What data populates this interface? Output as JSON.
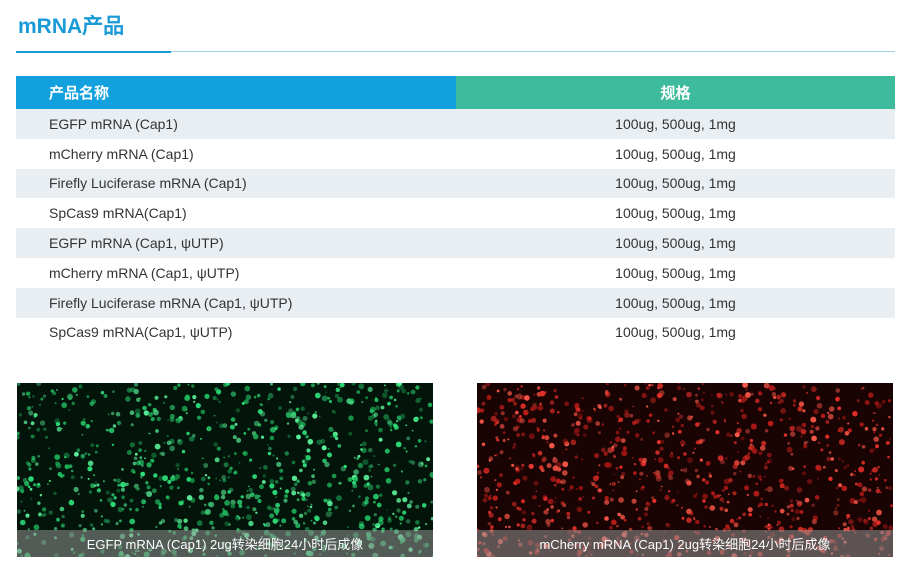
{
  "header": {
    "title": "mRNA产品"
  },
  "table": {
    "columns": [
      "产品名称",
      "规格"
    ],
    "rows": [
      [
        "EGFP mRNA (Cap1)",
        "100ug, 500ug, 1mg"
      ],
      [
        "mCherry mRNA (Cap1)",
        "100ug, 500ug, 1mg"
      ],
      [
        "Firefly Luciferase mRNA (Cap1)",
        "100ug, 500ug, 1mg"
      ],
      [
        "SpCas9 mRNA(Cap1)",
        "100ug, 500ug, 1mg"
      ],
      [
        "EGFP mRNA (Cap1, ψUTP)",
        "100ug, 500ug, 1mg"
      ],
      [
        "mCherry mRNA (Cap1, ψUTP)",
        "100ug, 500ug, 1mg"
      ],
      [
        "Firefly Luciferase mRNA (Cap1, ψUTP)",
        "100ug, 500ug, 1mg"
      ],
      [
        "SpCas9 mRNA(Cap1, ψUTP)",
        "100ug, 500ug, 1mg"
      ]
    ]
  },
  "figures": [
    {
      "caption": "EGFP mRNA (Cap1) 2ug转染细胞24小时后成像"
    },
    {
      "caption": "mCherry mRNA (Cap1) 2ug转染细胞24小时后成像"
    }
  ]
}
